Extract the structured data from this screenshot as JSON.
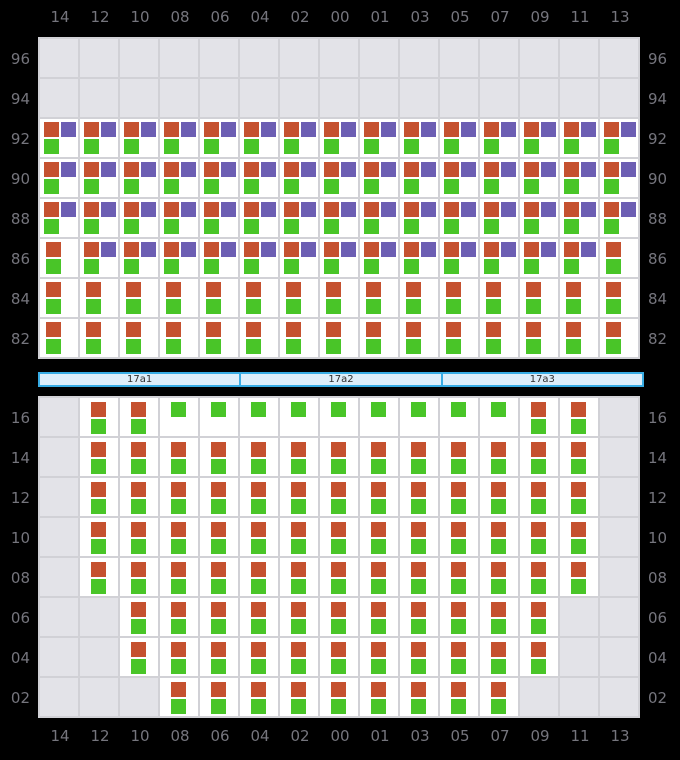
{
  "columns": [
    "14",
    "12",
    "10",
    "08",
    "06",
    "04",
    "02",
    "00",
    "01",
    "03",
    "05",
    "07",
    "09",
    "11",
    "13"
  ],
  "deck_section": {
    "rows": [
      "96",
      "94",
      "92",
      "90",
      "88",
      "86",
      "84",
      "82"
    ],
    "cells": [
      "EEEEEEEEEEEEEEE",
      "EEEEEEEEEEEEEEE",
      "TTTTTTTTTTTTTTT",
      "TTTTTTTTTTTTTTT",
      "TTTTTTTTTTTTTTT",
      "PTTTTTTTTTTTTTP",
      "PPPPPPPPPPPPPPP",
      "PPPPPPPPPPPPPPP"
    ]
  },
  "hold_section": {
    "rows": [
      "16",
      "14",
      "12",
      "10",
      "08",
      "06",
      "04",
      "02"
    ],
    "cells": [
      "ECCGGGGGGGGGCCE",
      "ECCCCCCCCCCCCCE",
      "ECCCCCCCCCCCCCE",
      "ECCCCCCCCCCCCCE",
      "ECCCCCCCCCCCCCE",
      "EECCCCCCCCCCCEE",
      "EECCCCCCCCCCCEE",
      "EEECCCCCCCCCEEE"
    ]
  },
  "cell_legend": {
    "E": [],
    "T": [
      "orange",
      "purple",
      "green"
    ],
    "P": [
      "orange",
      "green"
    ],
    "C": [
      "orange",
      "green"
    ],
    "G": [
      "green"
    ]
  },
  "hatch_covers": [
    {
      "label": "17a1"
    },
    {
      "label": "17a2"
    },
    {
      "label": "17a3"
    }
  ],
  "colors": {
    "background": "#000000",
    "label_text": "#75757d",
    "grid_line": "#d1d1d6",
    "empty_cell": "#e3e3e8",
    "occupied_cell": "#ffffff",
    "marker_orange": "#c5512f",
    "marker_purple": "#6c5eb3",
    "marker_green": "#49c528",
    "hatch_border": "#38ace4",
    "hatch_fill": "#ddeefa",
    "hatch_text": "#2e2e2e"
  }
}
